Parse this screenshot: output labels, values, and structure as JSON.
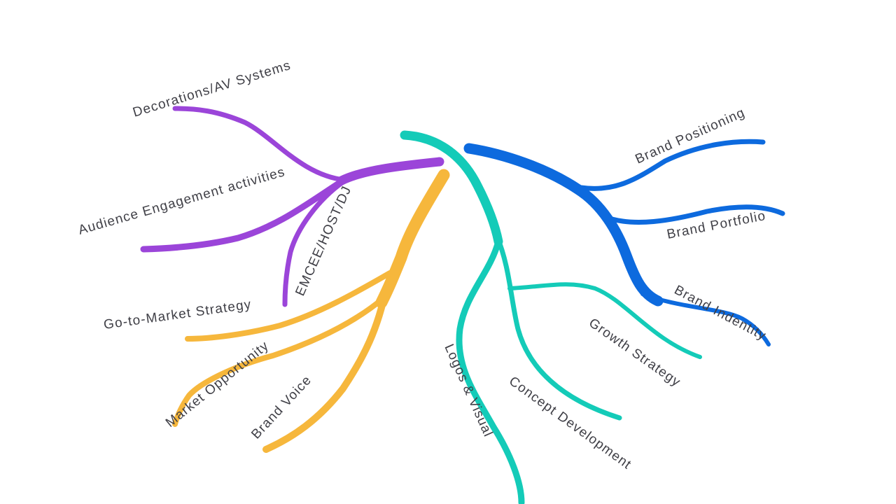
{
  "colors": {
    "purple": "#9b45d9",
    "yellow": "#f6b73c",
    "teal": "#14cbb8",
    "blue": "#0d6ade",
    "label": "#3f3f46"
  },
  "branches": {
    "purple": {
      "children": [
        "Decorations/AV Systems",
        "Audience Engagement activities",
        "EMCEE/HOST/DJ"
      ]
    },
    "yellow": {
      "children": [
        "Go-to-Market Strategy",
        "Market Opportunity",
        "Brand Voice"
      ]
    },
    "teal": {
      "children": [
        "Logos & Visual",
        "Concept Development",
        "Growth Strategy"
      ]
    },
    "blue": {
      "children": [
        "Brand Positioning",
        "Brand Portfolio",
        "Brand Indentity"
      ]
    }
  }
}
